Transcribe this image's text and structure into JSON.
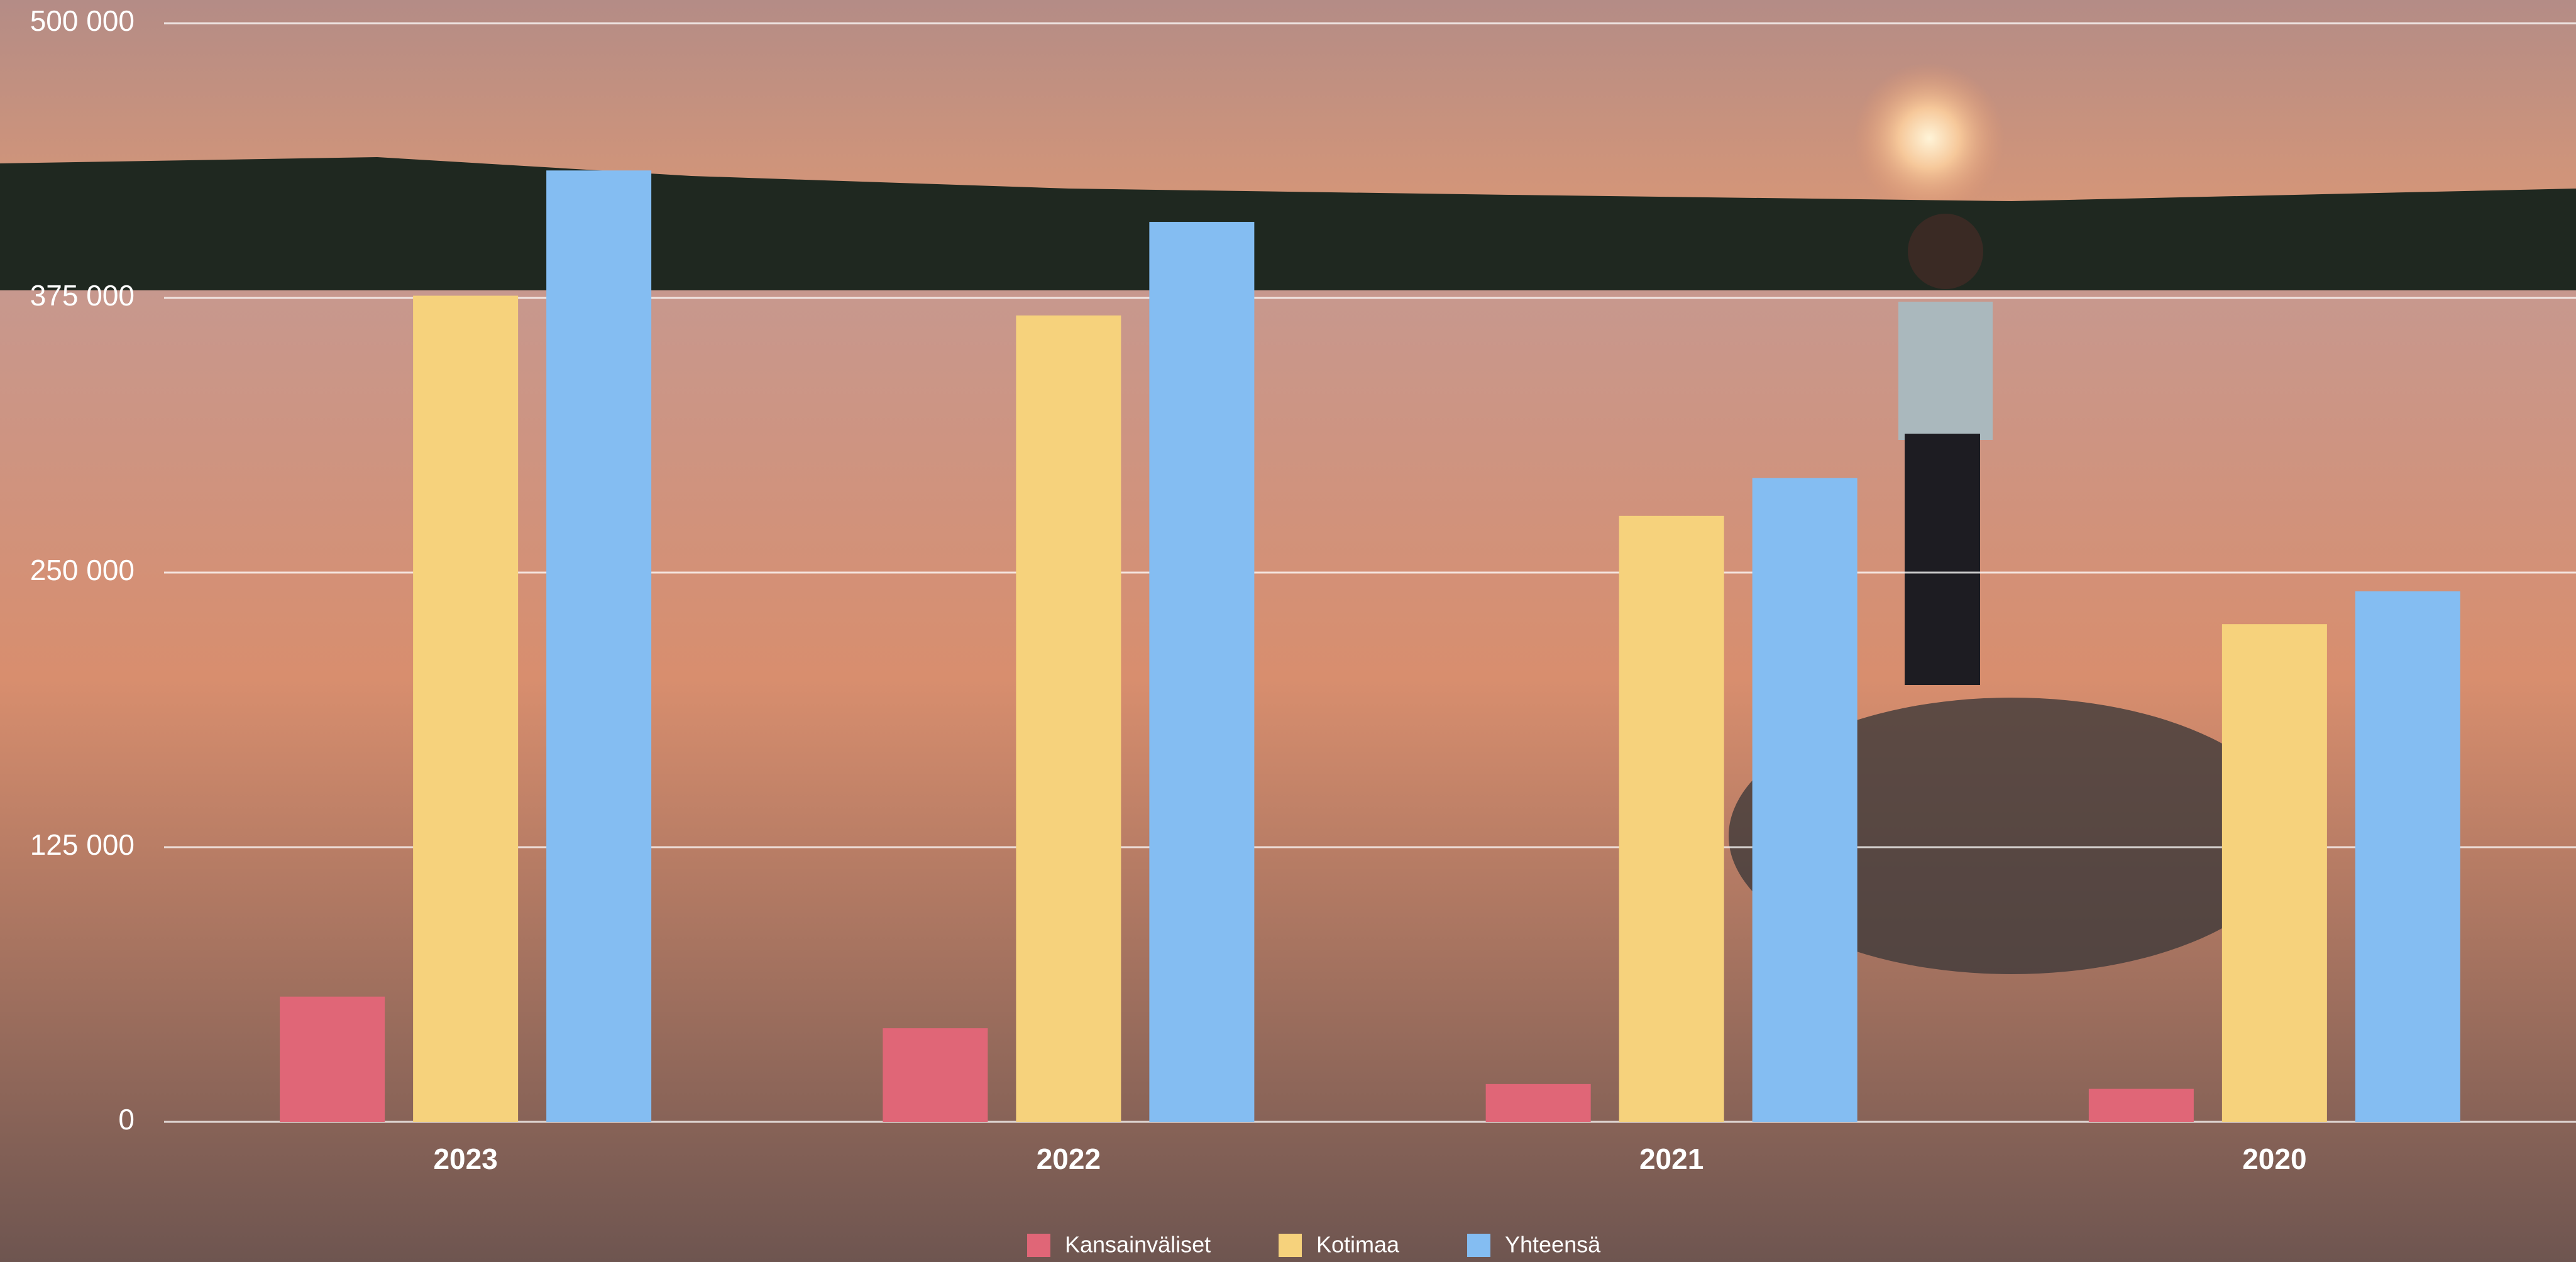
{
  "chart_data": {
    "type": "bar",
    "categories": [
      "2023",
      "2022",
      "2021",
      "2020"
    ],
    "series": [
      {
        "name": "Kansainväliset",
        "color": "#e06677",
        "values": [
          57000,
          42600,
          17200,
          15000
        ]
      },
      {
        "name": "Kotimaa",
        "color": "#f6d27c",
        "values": [
          376000,
          367000,
          275800,
          226500
        ]
      },
      {
        "name": "Yhteensä",
        "color": "#84bdf2",
        "values": [
          433000,
          409600,
          293000,
          241500
        ]
      }
    ],
    "ylim": [
      0,
      500000
    ],
    "yticks": [
      0,
      {
        "value": 125000,
        "label": "125 000"
      },
      {
        "value": 250000,
        "label": "250 000"
      },
      {
        "value": 375000,
        "label": "375 000"
      },
      {
        "value": 500000,
        "label": "500 000"
      }
    ],
    "grid": true
  }
}
